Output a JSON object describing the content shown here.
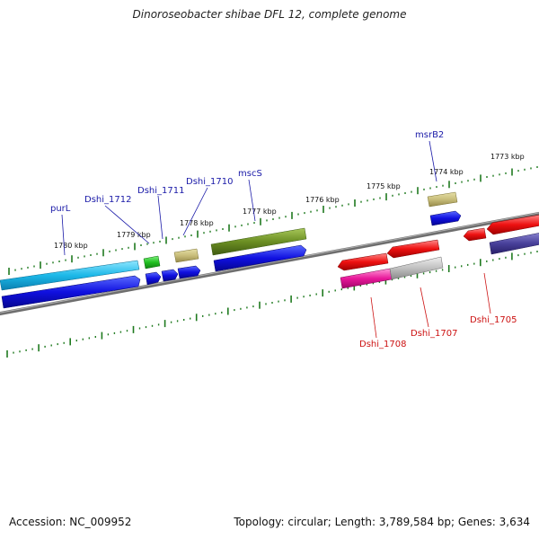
{
  "title": "Dinoroseobacter shibae DFL 12, complete genome",
  "footer": {
    "accession": "Accession: NC_009952",
    "summary": "Topology: circular; Length: 3,789,584 bp; Genes: 3,634"
  },
  "ruler_labels": [
    "1780 kbp",
    "1779 kbp",
    "1778 kbp",
    "1777 kbp",
    "1776 kbp",
    "1775 kbp",
    "1774 kbp",
    "1773 kbp"
  ],
  "gene_labels": [
    "purL",
    "Dshi_1712",
    "Dshi_1711",
    "Dshi_1710",
    "mscS",
    "msrB2",
    "Dshi_1708",
    "Dshi_1707",
    "Dshi_1705"
  ],
  "colors": {
    "forward_label": "#1a1aa8",
    "reverse_label": "#cc1111",
    "backbone": "#7a7a7a",
    "tick": "#1f7a1f"
  }
}
